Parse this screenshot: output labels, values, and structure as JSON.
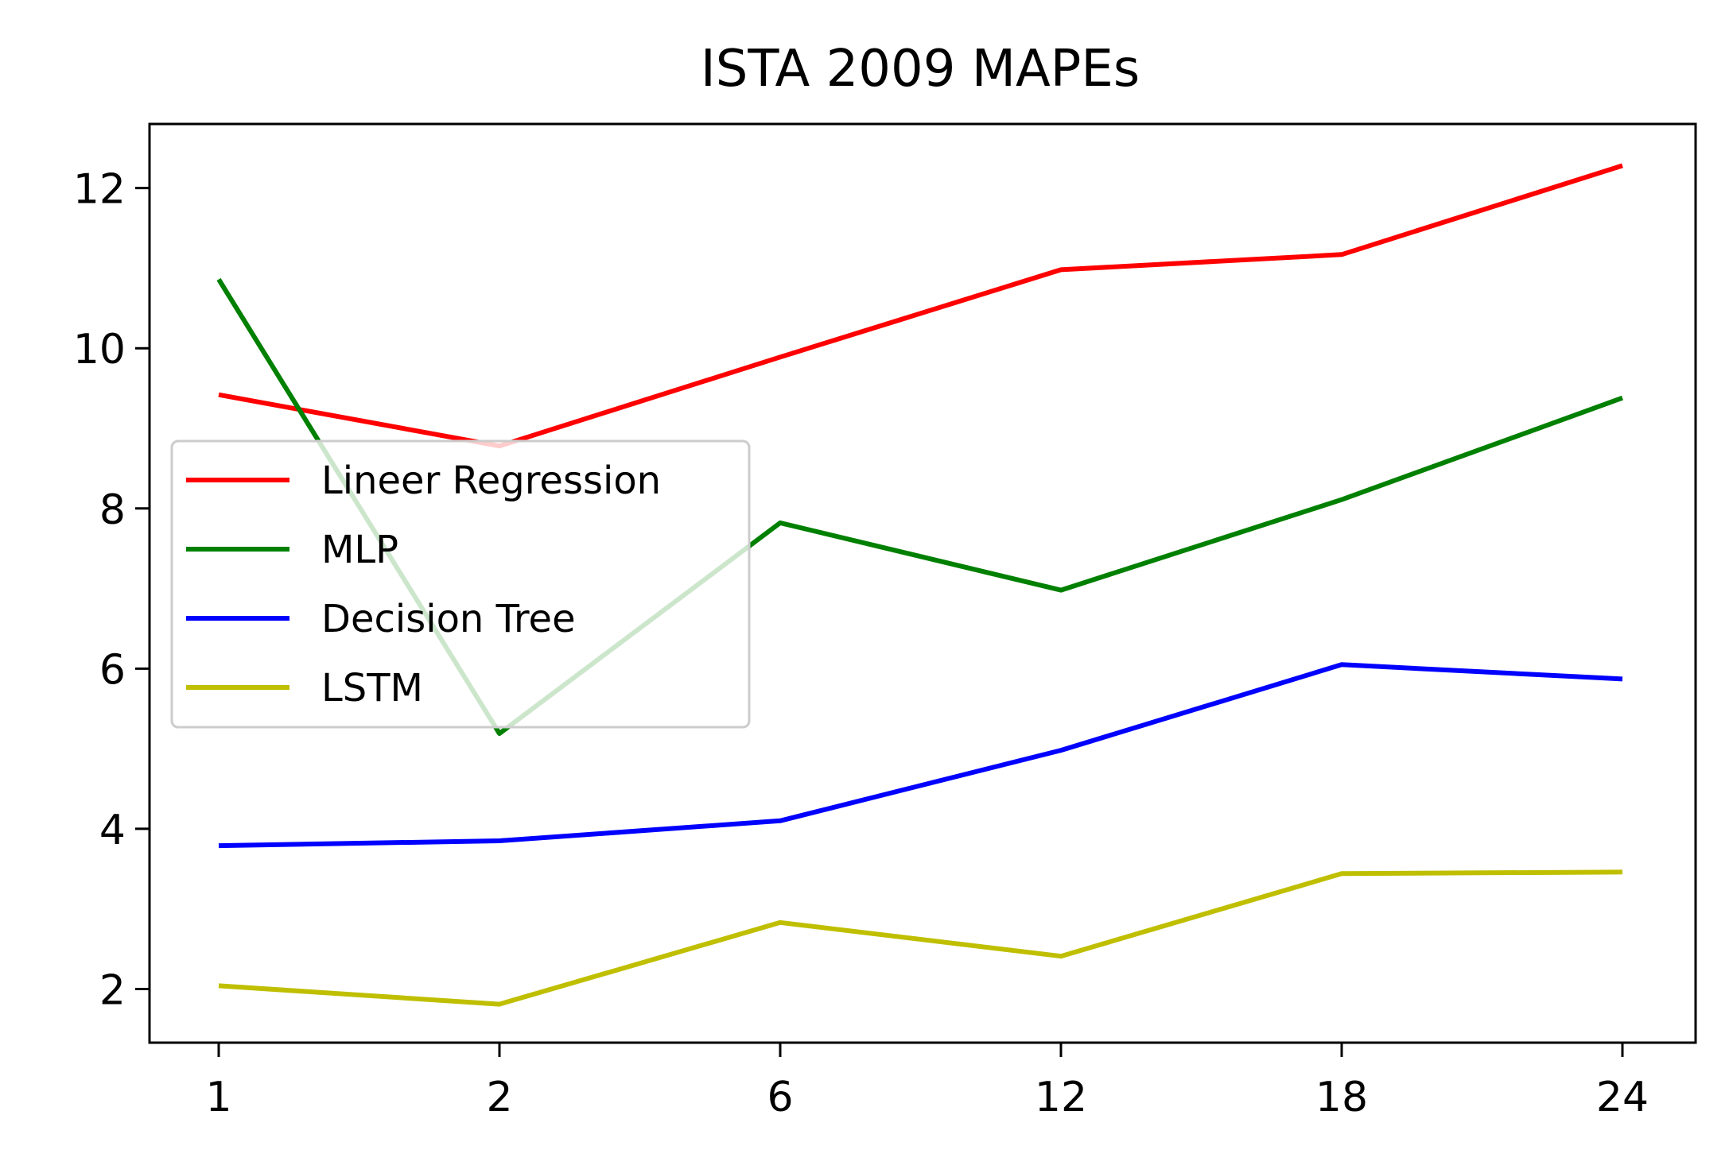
{
  "chart_data": {
    "type": "line",
    "title": "ISTA  2009 MAPEs",
    "xlabel": "",
    "ylabel": "",
    "categories": [
      "1",
      "2",
      "6",
      "12",
      "18",
      "24"
    ],
    "ylim": [
      1.33,
      12.8
    ],
    "yticks": [
      2,
      4,
      6,
      8,
      10,
      12
    ],
    "grid": false,
    "legend_position": "center-left",
    "series": [
      {
        "name": "Lineer Regression",
        "color": "#ff0000",
        "values": [
          9.42,
          8.78,
          9.89,
          10.98,
          11.17,
          12.28
        ]
      },
      {
        "name": "MLP",
        "color": "#008000",
        "values": [
          10.86,
          5.19,
          7.82,
          6.98,
          8.11,
          9.38
        ]
      },
      {
        "name": "Decision Tree",
        "color": "#0000ff",
        "values": [
          3.79,
          3.85,
          4.1,
          4.98,
          6.05,
          5.87
        ]
      },
      {
        "name": "LSTM",
        "color": "#bfbf00",
        "values": [
          2.04,
          1.81,
          2.83,
          2.41,
          3.44,
          3.46
        ]
      }
    ]
  }
}
